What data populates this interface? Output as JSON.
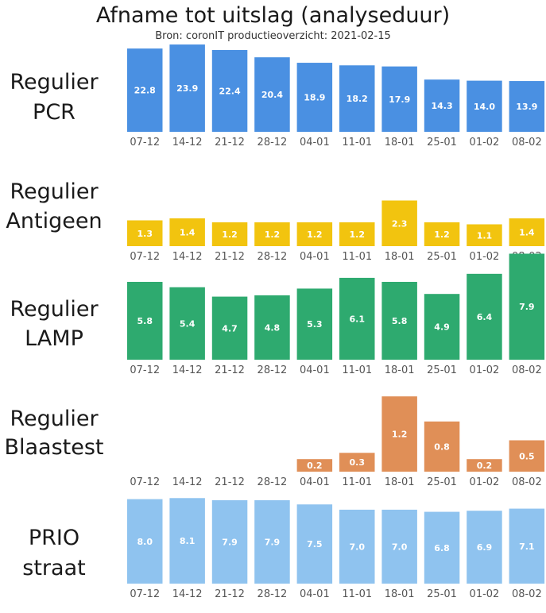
{
  "title": "Afname tot uitslag (analyseduur)",
  "subtitle": "Bron: coronIT productieoverzicht: 2021-02-15",
  "chart_data": {
    "type": "bar",
    "categories": [
      "07-12",
      "14-12",
      "21-12",
      "28-12",
      "04-01",
      "11-01",
      "18-01",
      "25-01",
      "01-02",
      "08-02"
    ],
    "panels": [
      {
        "label": [
          "Regulier",
          "PCR"
        ],
        "color": "#4a90e2",
        "values": [
          22.8,
          23.9,
          22.4,
          20.4,
          18.9,
          18.2,
          17.9,
          14.3,
          14.0,
          13.9
        ]
      },
      {
        "label": [
          "Regulier",
          "Antigeen"
        ],
        "color": "#f2c40f",
        "values": [
          1.3,
          1.4,
          1.2,
          1.2,
          1.2,
          1.2,
          2.3,
          1.2,
          1.1,
          1.4
        ]
      },
      {
        "label": [
          "Regulier",
          "LAMP"
        ],
        "color": "#2eaa6f",
        "values": [
          5.8,
          5.4,
          4.7,
          4.8,
          5.3,
          6.1,
          5.8,
          4.9,
          6.4,
          7.9
        ]
      },
      {
        "label": [
          "Regulier",
          "Blaastest"
        ],
        "color": "#e08f57",
        "values": [
          null,
          null,
          null,
          null,
          0.2,
          0.3,
          1.2,
          0.8,
          0.2,
          0.5
        ]
      },
      {
        "label": [
          "PRIO",
          "straat"
        ],
        "color": "#8fc3ef",
        "values": [
          8.0,
          8.1,
          7.9,
          7.9,
          7.5,
          7.0,
          7.0,
          6.8,
          6.9,
          7.1
        ]
      }
    ]
  }
}
